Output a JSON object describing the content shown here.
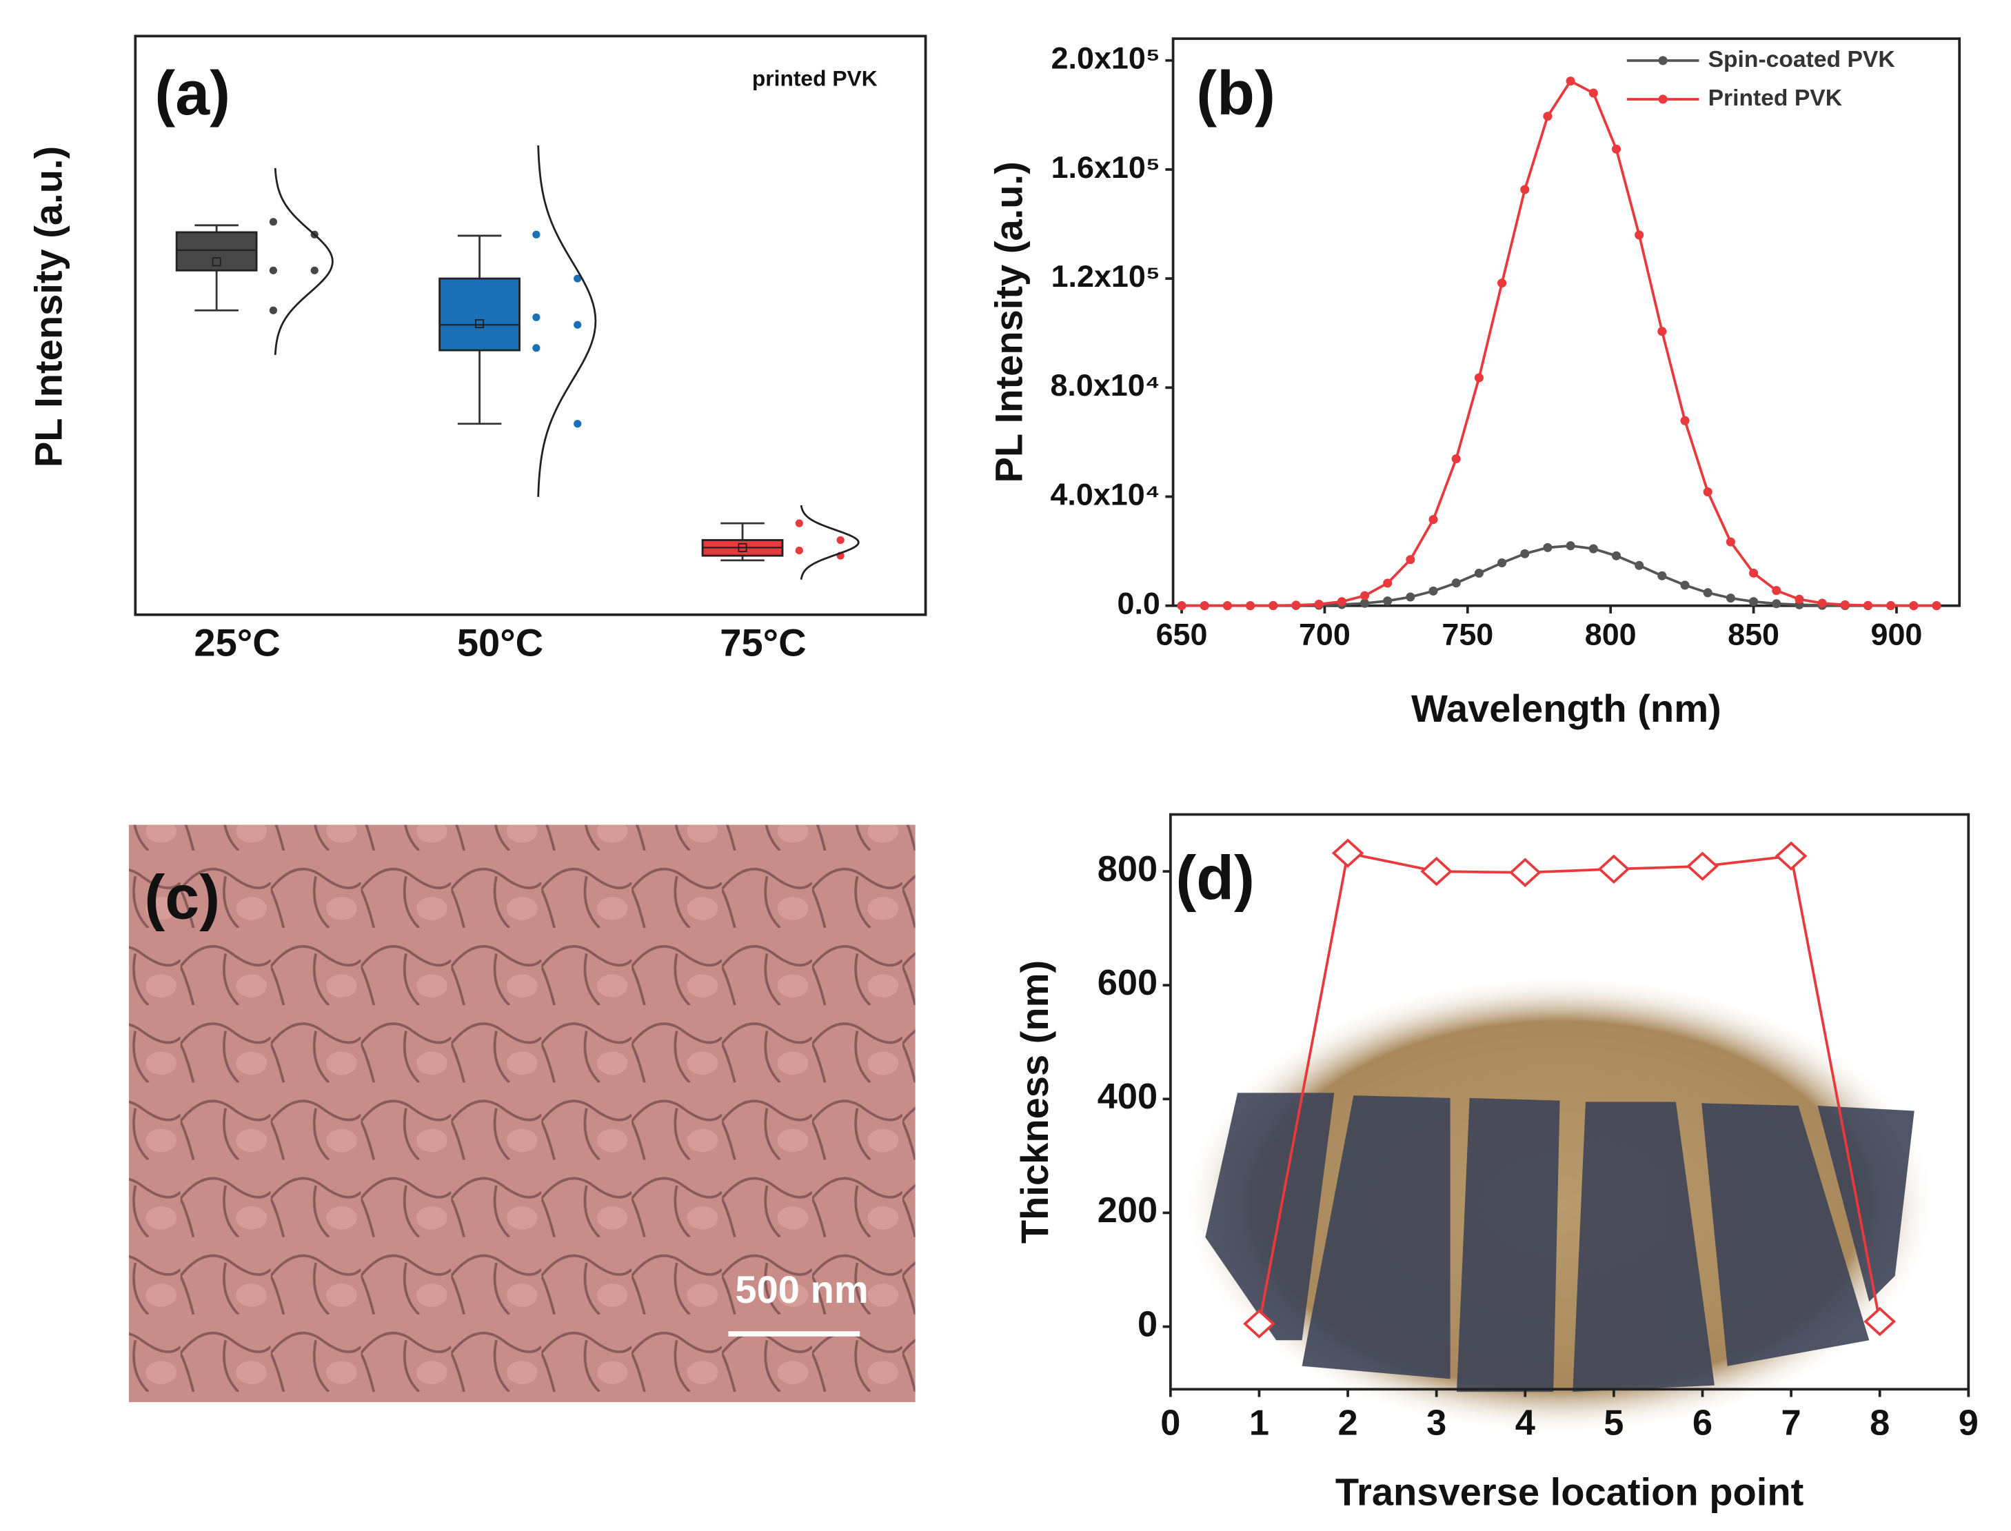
{
  "chart_data": [
    {
      "type": "box",
      "label": "(a)",
      "annotation": "printed PVK",
      "ylabel": "PL Intensity (a.u.)",
      "categories": [
        "25°C",
        "50°C",
        "75°C"
      ],
      "colors": [
        "#474747",
        "#1a6fb5",
        "#e8393c"
      ],
      "ylim": [
        0,
        100
      ],
      "boxes": [
        {
          "whisker_low": 52.6,
          "q1": 59.5,
          "median": 63,
          "q3": 66.1,
          "whisker_high": 67.3,
          "mean": 61,
          "points": [
            67.9,
            65.7,
            59.5,
            59.5,
            52.6
          ]
        },
        {
          "whisker_low": 33,
          "q1": 45.7,
          "median": 50.1,
          "q3": 58.1,
          "whisker_high": 65.5,
          "mean": 50.3,
          "points": [
            65.7,
            58.1,
            51.4,
            50.1,
            46.1,
            33
          ]
        },
        {
          "whisker_low": 9.4,
          "q1": 10.2,
          "median": 11.6,
          "q3": 12.9,
          "whisker_high": 15.8,
          "mean": 11.6,
          "points": [
            15.8,
            12.9,
            11.1,
            10.2
          ]
        }
      ]
    },
    {
      "type": "line",
      "label": "(b)",
      "xlabel": "Wavelength (nm)",
      "ylabel": "PL Intensity (a.u.)",
      "legend": "upper right",
      "x": [
        650,
        658,
        666,
        674,
        682,
        690,
        698,
        706,
        714,
        722,
        730,
        738,
        746,
        754,
        762,
        770,
        778,
        786,
        794,
        802,
        810,
        818,
        826,
        834,
        842,
        850,
        858,
        866,
        874,
        882,
        890,
        898,
        906,
        914
      ],
      "series": [
        {
          "name": "Spin-coated PVK",
          "color": "#555555",
          "values": [
            0,
            0,
            3,
            8,
            25,
            69,
            176,
            411,
            883,
            1752,
            3194,
            5373,
            8335,
            11930,
            15710,
            19060,
            21320,
            21990,
            20890,
            18300,
            14760,
            10980,
            7530,
            4760,
            2780,
            1490,
            735,
            335,
            141,
            55,
            20,
            6,
            2,
            0
          ]
        },
        {
          "name": "Printed PVK",
          "color": "#e8393c",
          "values": [
            0,
            1,
            4,
            16,
            57,
            185,
            550,
            1488,
            3671,
            8254,
            16920,
            31610,
            53870,
            83610,
            118350,
            152660,
            179530,
            192440,
            188040,
            167490,
            135990,
            100630,
            67880,
            41750,
            23390,
            11960,
            5568,
            2364,
            915,
            323,
            104,
            31,
            8,
            2
          ]
        }
      ],
      "xlim": [
        647,
        922
      ],
      "xticks": [
        650,
        700,
        750,
        800,
        850,
        900
      ],
      "ylim": [
        0,
        208000
      ],
      "yticks": [
        {
          "value": 0,
          "label": "0.0"
        },
        {
          "value": 40000,
          "label": "4.0x10⁴"
        },
        {
          "value": 80000,
          "label": "8.0x10⁴"
        },
        {
          "value": 120000,
          "label": "1.2x10⁵"
        },
        {
          "value": 160000,
          "label": "1.6x10⁵"
        },
        {
          "value": 200000,
          "label": "2.0x10⁵"
        }
      ]
    },
    {
      "type": "image",
      "label": "(c)",
      "scale_bar": "500 nm"
    },
    {
      "type": "line",
      "label": "(d)",
      "xlabel": "Transverse location point",
      "ylabel": "Thickness (nm)",
      "marker": "diamond",
      "x": [
        1,
        2,
        3,
        4,
        5,
        6,
        7,
        8
      ],
      "series": [
        {
          "color": "#e8393c",
          "values": [
            5,
            832,
            800,
            798,
            804,
            809,
            827,
            9
          ]
        }
      ],
      "xlim": [
        0,
        9
      ],
      "xticks": [
        0,
        1,
        2,
        3,
        4,
        5,
        6,
        7,
        8,
        9
      ],
      "ylim": [
        -110,
        900
      ],
      "yticks": [
        0,
        200,
        400,
        600,
        800
      ]
    }
  ]
}
